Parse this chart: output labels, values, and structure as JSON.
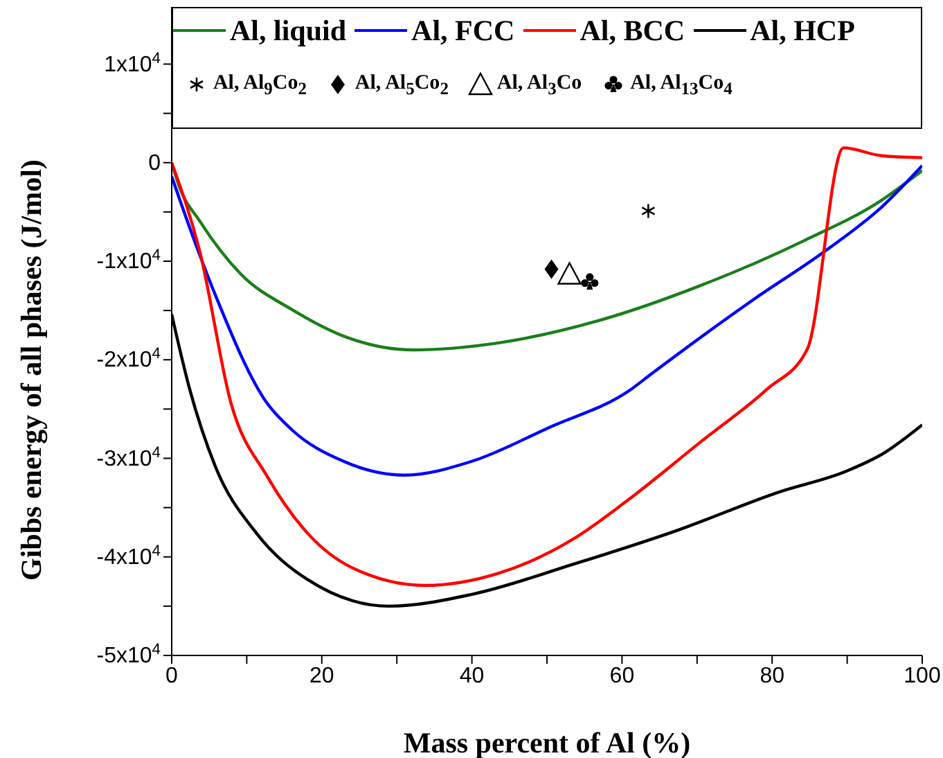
{
  "chart_data": {
    "type": "line",
    "xlabel": "Mass percent of Al (%)",
    "ylabel": "Gibbs energy of all phases (J/mol)",
    "xlim": [
      0,
      100
    ],
    "ylim": [
      -50000,
      15800
    ],
    "xticks": [
      0,
      {
        "value": 10,
        "label": null
      },
      20,
      {
        "value": 30,
        "label": null
      },
      40,
      {
        "value": 50,
        "label": null
      },
      60,
      {
        "value": 70,
        "label": null
      },
      80,
      {
        "value": 90,
        "label": null
      },
      100
    ],
    "yticks": [
      {
        "value": -50000,
        "label": "-5x10$^{4}$"
      },
      {
        "value": -45000,
        "label": null
      },
      {
        "value": -40000,
        "label": "-4x10$^{4}$"
      },
      {
        "value": -35000,
        "label": null
      },
      {
        "value": -30000,
        "label": "-3x10$^{4}$"
      },
      {
        "value": -25000,
        "label": null
      },
      {
        "value": -20000,
        "label": "-2x10$^{4}$"
      },
      {
        "value": -15000,
        "label": null
      },
      {
        "value": -10000,
        "label": "-1x10$^{4}$"
      },
      {
        "value": -5000,
        "label": null
      },
      0,
      {
        "value": 5000,
        "label": null
      },
      {
        "value": 10000,
        "label": "1x10$^{4}$"
      }
    ],
    "grid": false,
    "legend": "top",
    "line_style": "solid",
    "series": [
      {
        "name": "Al, liquid",
        "color": "#1a7f1a",
        "x": [
          0,
          1,
          3.8,
          9.2,
          16,
          22.9,
          32.2,
          43.4,
          57,
          70.7,
          84.3,
          94.6,
          100
        ],
        "values": [
          0,
          -2400,
          -6000,
          -11300,
          -14900,
          -17600,
          -19000,
          -18300,
          -16000,
          -12400,
          -7900,
          -3800,
          -800
        ]
      },
      {
        "name": "Al, FCC",
        "color": "#0000ff",
        "x": [
          0,
          2.4,
          5.8,
          12.7,
          16,
          22.9,
          31,
          40,
          50.2,
          61.2,
          63.8,
          77.5,
          87,
          94.6,
          100
        ],
        "values": [
          -1400,
          -6600,
          -13400,
          -24400,
          -27100,
          -30300,
          -31700,
          -30300,
          -26900,
          -23000,
          -21500,
          -13900,
          -9000,
          -4500,
          -300
        ]
      },
      {
        "name": "Al, BCC",
        "color": "#ff0000",
        "x": [
          0,
          3.8,
          7.9,
          12.7,
          18.1,
          24.3,
          33.8,
          43.4,
          53.7,
          60.5,
          70.7,
          79.3,
          84.7,
          89.5,
          94.6,
          100
        ],
        "values": [
          0,
          -9200,
          -24400,
          -31800,
          -37600,
          -41200,
          -42900,
          -41700,
          -38100,
          -34400,
          -28200,
          -23000,
          -18900,
          1500,
          700,
          500
        ]
      },
      {
        "name": "Al, HCP",
        "color": "#000000",
        "x": [
          0,
          2.4,
          5.8,
          11.3,
          18.1,
          29,
          40,
          53.7,
          67.4,
          81,
          89.9,
          94.6,
          100
        ],
        "values": [
          -15400,
          -23000,
          -30800,
          -37600,
          -42300,
          -45000,
          -43800,
          -40700,
          -37300,
          -33400,
          -31300,
          -29600,
          -26600
        ]
      },
      {
        "name": "Al, Al$_{9}$Co$_{2}$",
        "type": "scatter",
        "marker": "cross",
        "color": "#000000",
        "x": [
          63.5
        ],
        "values": [
          -4900
        ]
      },
      {
        "name": "Al, Al$_{5}$Co$_{2}$",
        "type": "scatter",
        "marker": "diamond",
        "color": "#000000",
        "x": [
          50.6
        ],
        "values": [
          -10800
        ]
      },
      {
        "name": "Al, Al$_{3}$Co",
        "type": "scatter",
        "marker": "triangle",
        "color": "#000000",
        "x": [
          53
        ],
        "values": [
          -11300
        ]
      },
      {
        "name": "Al, Al$_{13}$Co$_{4}$",
        "type": "scatter",
        "color": "#000000",
        "x": [
          55.7
        ],
        "values": [
          -12100
        ]
      }
    ]
  }
}
